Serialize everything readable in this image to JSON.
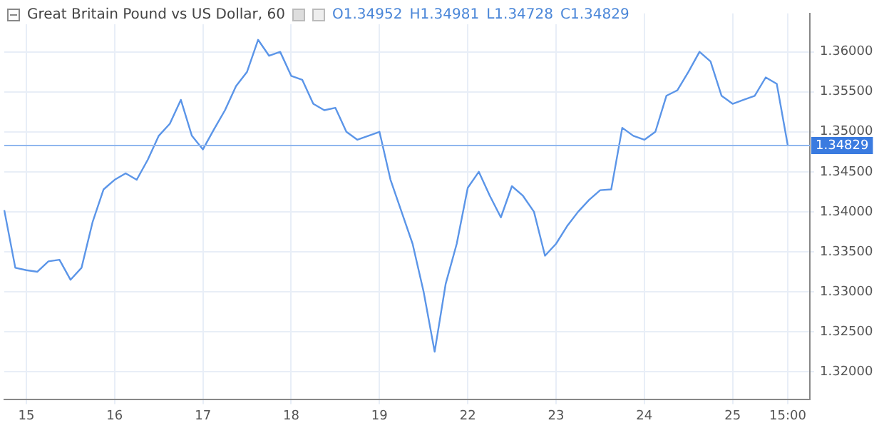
{
  "chart_data": {
    "type": "line",
    "title": "Great Britain Pound vs US Dollar, 60",
    "annotations": [
      "O1.34952",
      "H1.34981",
      "L1.34728",
      "C1.34829"
    ],
    "categories": [
      null,
      null,
      "15",
      null,
      null,
      null,
      null,
      null,
      null,
      null,
      "16",
      null,
      null,
      null,
      null,
      null,
      null,
      null,
      "17",
      null,
      null,
      null,
      null,
      null,
      null,
      null,
      "18",
      null,
      null,
      null,
      null,
      null,
      null,
      null,
      "19",
      null,
      null,
      null,
      null,
      null,
      null,
      null,
      "22",
      null,
      null,
      null,
      null,
      null,
      null,
      null,
      "23",
      null,
      null,
      null,
      null,
      null,
      null,
      null,
      "24",
      null,
      null,
      null,
      null,
      null,
      null,
      null,
      "25",
      null,
      null,
      null,
      null,
      "15:00",
      null,
      null
    ],
    "series": [
      {
        "color": "#5b95e8",
        "values": [
          1.3402,
          1.333,
          1.3327,
          1.3325,
          1.3338,
          1.334,
          1.3315,
          1.333,
          1.3387,
          1.3428,
          1.344,
          1.3448,
          1.344,
          1.3465,
          1.3495,
          1.351,
          1.354,
          1.3495,
          1.3478,
          1.3503,
          1.3527,
          1.3557,
          1.3575,
          1.3615,
          1.3595,
          1.36,
          1.357,
          1.3565,
          1.3535,
          1.3527,
          1.353,
          1.35,
          1.349,
          1.3495,
          1.35,
          1.344,
          1.34,
          1.336,
          1.33,
          1.3225,
          1.331,
          1.336,
          1.343,
          1.345,
          1.342,
          1.3393,
          1.3432,
          1.342,
          1.34,
          1.3345,
          1.336,
          1.3382,
          1.34,
          1.3415,
          1.3427,
          1.3428,
          1.3505,
          1.3495,
          1.349,
          1.35,
          1.3545,
          1.3552,
          1.3575,
          1.36,
          1.3588,
          1.3545,
          1.3535,
          1.354,
          1.3545,
          1.3568,
          1.356,
          1.3483,
          null,
          null
        ]
      }
    ],
    "ylim": [
      1.3165,
      1.3648
    ],
    "yticks": [
      {
        "value": 1.32,
        "label": "1.32000"
      },
      {
        "value": 1.325,
        "label": "1.32500"
      },
      {
        "value": 1.33,
        "label": "1.33000"
      },
      {
        "value": 1.335,
        "label": "1.33500"
      },
      {
        "value": 1.34,
        "label": "1.34000"
      },
      {
        "value": 1.345,
        "label": "1.34500"
      },
      {
        "value": 1.35,
        "label": "1.35000"
      },
      {
        "value": 1.355,
        "label": "1.35500"
      },
      {
        "value": 1.36,
        "label": "1.36000"
      }
    ],
    "ref_lines": [
      {
        "axis": "y",
        "value": 1.34829,
        "label": "1.34829",
        "color": "#8fb6ee"
      }
    ],
    "grid": true,
    "legend": false,
    "marker": "none",
    "line_style": "solid"
  }
}
